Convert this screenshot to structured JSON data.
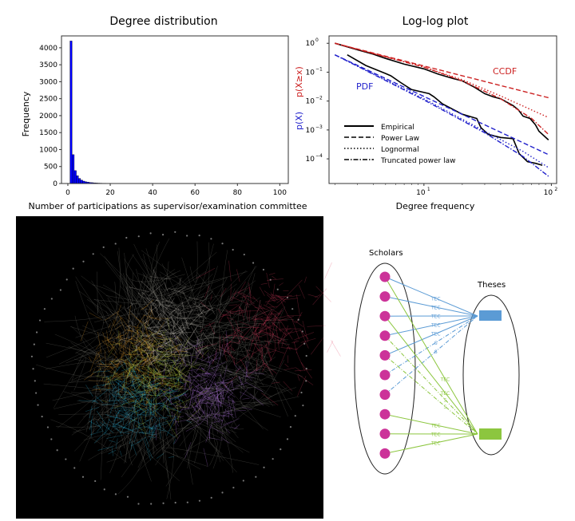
{
  "chart_data": [
    {
      "type": "bar",
      "title": "Degree distribution",
      "xlabel": "Number of participations as supervisor/examination committee",
      "ylabel": "Frequency",
      "xlim": [
        -3,
        104
      ],
      "ylim": [
        0,
        4350
      ],
      "xticks": [
        0,
        20,
        40,
        60,
        80,
        100
      ],
      "yticks": [
        0,
        500,
        1000,
        1500,
        2000,
        2500,
        3000,
        3500,
        4000
      ],
      "bar_color": "#0000ff",
      "bins": [
        1,
        2,
        3,
        4,
        5,
        6,
        7,
        8,
        9,
        10,
        11,
        12,
        13,
        14,
        15,
        16,
        18,
        20,
        25,
        30,
        40,
        50,
        60,
        70,
        80,
        90,
        99
      ],
      "values": [
        4200,
        850,
        380,
        230,
        150,
        100,
        70,
        50,
        40,
        30,
        25,
        20,
        15,
        12,
        10,
        8,
        6,
        5,
        3,
        2,
        2,
        1,
        1,
        1,
        1,
        1,
        1
      ]
    },
    {
      "type": "line",
      "title": "Log-log plot",
      "xlabel": "Degree frequency",
      "ylabel_pdf": "p(X)",
      "ylabel_ccdf": "p(X≥x)",
      "xscale": "log",
      "yscale": "log",
      "xlim": [
        1.8,
        110
      ],
      "ylim": [
        1.4e-05,
        1.8
      ],
      "xticks": [
        {
          "v": 10,
          "label": "10",
          "exp": "1"
        },
        {
          "v": 100,
          "label": "10",
          "exp": "2"
        }
      ],
      "yticks": [
        {
          "v": 1,
          "label": "10",
          "exp": "0"
        },
        {
          "v": 0.1,
          "label": "10",
          "exp": "−1"
        },
        {
          "v": 0.01,
          "label": "10",
          "exp": "−2"
        },
        {
          "v": 0.001,
          "label": "10",
          "exp": "−3"
        },
        {
          "v": 0.0001,
          "label": "10",
          "exp": "−4"
        }
      ],
      "annotations": [
        {
          "text": "CCDF",
          "color": "#cc2222"
        },
        {
          "text": "PDF",
          "color": "#2222cc"
        }
      ],
      "legend": {
        "placement": "lower-left",
        "entries": [
          {
            "label": "Empirical",
            "style": "solid"
          },
          {
            "label": "Power Law",
            "style": "dashed"
          },
          {
            "label": "Lognormal",
            "style": "dotted"
          },
          {
            "label": "Truncated power law",
            "style": "dashdot"
          }
        ]
      },
      "series": [
        {
          "group": "CCDF",
          "fit": "Empirical",
          "style": "solid",
          "color": "#000000",
          "x": [
            2,
            3,
            4,
            5,
            7,
            10,
            13,
            17,
            20,
            25,
            30,
            35,
            40,
            45,
            50,
            55,
            60,
            68,
            75,
            80,
            95
          ],
          "y": [
            1,
            0.6,
            0.42,
            0.3,
            0.19,
            0.13,
            0.085,
            0.06,
            0.05,
            0.03,
            0.018,
            0.014,
            0.012,
            0.009,
            0.007,
            0.005,
            0.003,
            0.0025,
            0.0015,
            0.0009,
            0.00045
          ]
        },
        {
          "group": "CCDF",
          "fit": "Power Law",
          "style": "dashed",
          "color": "#cc2222",
          "x": [
            2,
            95
          ],
          "y": [
            1,
            0.013
          ]
        },
        {
          "group": "CCDF",
          "fit": "Lognormal",
          "style": "dotted",
          "color": "#cc2222",
          "x": [
            2,
            10,
            20,
            40,
            95
          ],
          "y": [
            1,
            0.15,
            0.055,
            0.015,
            0.0027
          ]
        },
        {
          "group": "CCDF",
          "fit": "Truncated power law",
          "style": "dashdot",
          "color": "#cc2222",
          "x": [
            2,
            10,
            20,
            40,
            70,
            95
          ],
          "y": [
            1,
            0.15,
            0.05,
            0.012,
            0.0025,
            0.0007
          ]
        },
        {
          "group": "PDF",
          "fit": "Empirical",
          "style": "solid",
          "color": "#000000",
          "x": [
            2.5,
            3.5,
            5,
            5.5,
            6.5,
            8,
            11,
            12,
            14,
            20,
            26,
            28,
            32,
            40,
            50,
            56,
            65,
            75,
            85
          ],
          "y": [
            0.4,
            0.17,
            0.09,
            0.075,
            0.045,
            0.025,
            0.018,
            0.014,
            0.008,
            0.0035,
            0.0025,
            0.0012,
            0.0007,
            0.00055,
            0.0005,
            0.00015,
            8e-05,
            7e-05,
            6e-05
          ]
        },
        {
          "group": "PDF",
          "fit": "Power Law",
          "style": "dashed",
          "color": "#2222cc",
          "x": [
            2,
            95
          ],
          "y": [
            0.4,
            0.00014
          ]
        },
        {
          "group": "PDF",
          "fit": "Lognormal",
          "style": "dotted",
          "color": "#2222cc",
          "x": [
            2,
            10,
            30,
            60,
            95
          ],
          "y": [
            0.4,
            0.012,
            0.0009,
            0.00018,
            5e-05
          ]
        },
        {
          "group": "PDF",
          "fit": "Truncated power law",
          "style": "dashdot",
          "color": "#2222cc",
          "x": [
            2,
            10,
            30,
            60,
            95
          ],
          "y": [
            0.4,
            0.011,
            0.0008,
            0.00012,
            2.5e-05
          ]
        }
      ]
    }
  ],
  "diagram": {
    "scholars_label": "Scholars",
    "theses_label": "Theses",
    "scholar_count": 10,
    "node_color": "#cc3399",
    "thesis_colors": [
      "#5b9bd5",
      "#8cc63f"
    ],
    "edge_label_tec": "TEC",
    "edge_label_s": "S",
    "edges": [
      {
        "from": 0,
        "to": 0,
        "type": "TEC"
      },
      {
        "from": 1,
        "to": 0,
        "type": "TEC"
      },
      {
        "from": 2,
        "to": 0,
        "type": "TEC"
      },
      {
        "from": 3,
        "to": 0,
        "type": "TEC"
      },
      {
        "from": 4,
        "to": 0,
        "type": "TEC"
      },
      {
        "from": 5,
        "to": 0,
        "type": "S"
      },
      {
        "from": 6,
        "to": 0,
        "type": "S"
      },
      {
        "from": 0,
        "to": 1,
        "type": "TEC"
      },
      {
        "from": 2,
        "to": 1,
        "type": "TEC"
      },
      {
        "from": 3,
        "to": 1,
        "type": "S"
      },
      {
        "from": 4,
        "to": 1,
        "type": "S"
      },
      {
        "from": 7,
        "to": 1,
        "type": "TEC"
      },
      {
        "from": 8,
        "to": 1,
        "type": "TEC"
      },
      {
        "from": 9,
        "to": 1,
        "type": "TEC"
      }
    ]
  },
  "network": {
    "background": "#000000",
    "cluster_colors": [
      "#e8a030",
      "#b8d040",
      "#30c0e8",
      "#d8d0c8",
      "#c080f0",
      "#e04060"
    ]
  }
}
